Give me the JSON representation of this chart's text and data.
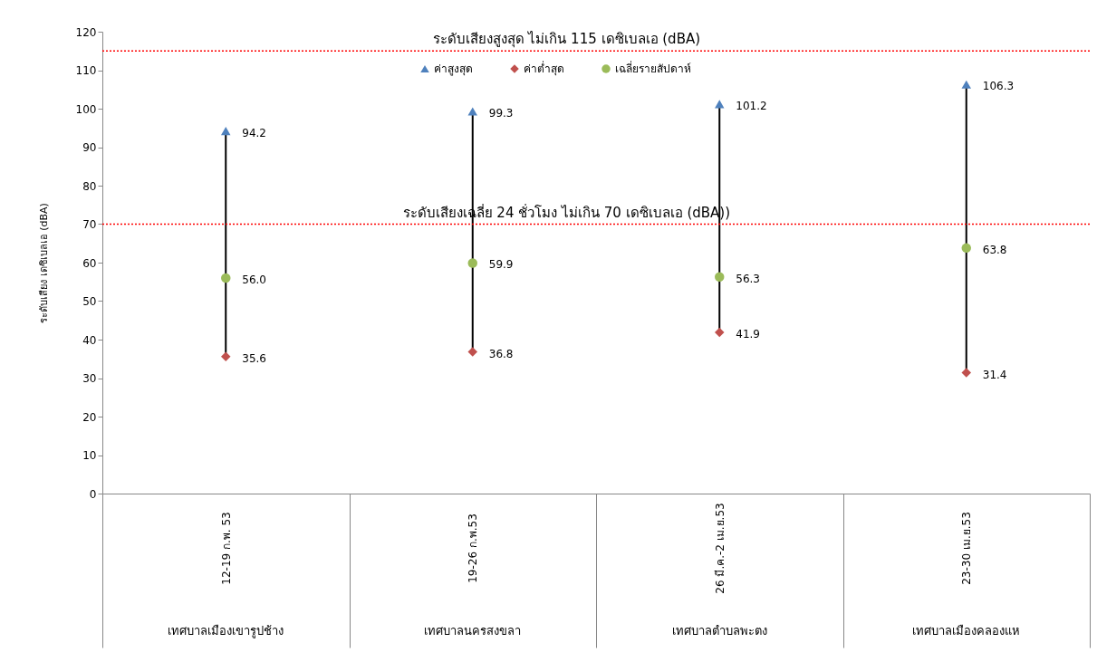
{
  "chart_data": {
    "type": "scatter",
    "ylabel": "ระดับเสียง เดซิเบลเอ  (dBA)",
    "categories": [
      "12-19 ก.พ. 53",
      "19-26 ก.พ.53",
      "26 มี.ค.-2 เม.ย.53",
      "23-30 เม.ย.53"
    ],
    "series": [
      {
        "name": "ค่าสูงสุด",
        "color": "#4f81bd",
        "marker": "triangle",
        "values": [
          94.2,
          99.3,
          101.2,
          106.3
        ],
        "value_labels": [
          "94.2",
          "99.3",
          "101.2",
          "106.3"
        ]
      },
      {
        "name": "ค่าต่ำสุด",
        "color": "#c0504d",
        "marker": "diamond",
        "values": [
          35.6,
          36.8,
          41.9,
          31.4
        ],
        "value_labels": [
          "35.6",
          "36.8",
          "41.9",
          "31.4"
        ]
      },
      {
        "name": "เฉลี่ยรายสัปดาห์",
        "color": "#9bbb59",
        "marker": "circle",
        "values": [
          56.0,
          59.9,
          56.3,
          63.8
        ],
        "value_labels": [
          "56.0",
          "59.9",
          "56.3",
          "63.8"
        ]
      }
    ],
    "ylim": [
      0,
      120
    ],
    "yticks": [
      0,
      10,
      20,
      30,
      40,
      50,
      60,
      70,
      80,
      90,
      100,
      110,
      120
    ],
    "ref_lines": [
      {
        "axis": "y",
        "value": 115,
        "label": "ระดับเสียงสูงสุด ไม่เกิน 115 เดซิเบลเอ (dBA)",
        "color": "#ff0000",
        "line_style": "dotted"
      },
      {
        "axis": "y",
        "value": 70,
        "label": "ระดับเสียงเฉลี่ย 24 ชั่วโมง ไม่เกิน 70  เดซิเบลเอ  (dBA))",
        "color": "#ff0000",
        "line_style": "dotted"
      }
    ],
    "annotations": [
      "เทศบาลเมืองเขารูปช้าง",
      "เทศบาลนครสงขลา",
      "เทศบาลตำบลพะตง",
      "เทศบาลเมืองคลองแห"
    ],
    "grid": false,
    "legend": "top"
  }
}
